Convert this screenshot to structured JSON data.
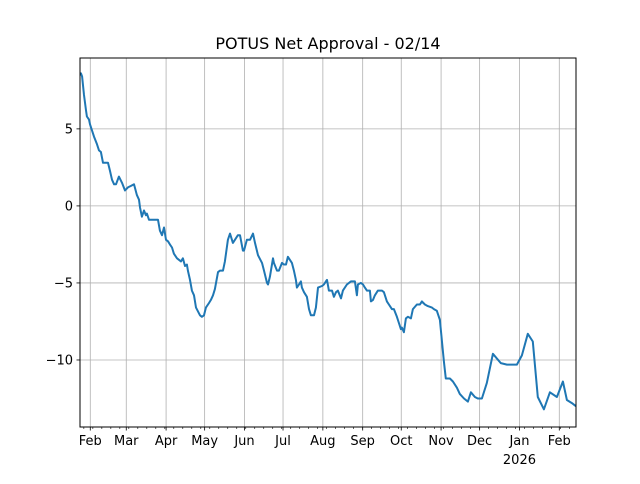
{
  "chart_data": {
    "type": "line",
    "title": "POTUS Net Approval - 02/14",
    "xlabel": "",
    "ylabel": "",
    "x_unit": "days since 2025-01-24",
    "xlim": [
      0,
      386
    ],
    "ylim": [
      -14.35,
      9.6
    ],
    "grid": true,
    "line_color": "#1f77b4",
    "yticks": [
      {
        "value": 5,
        "label": "5"
      },
      {
        "value": 0,
        "label": "0"
      },
      {
        "value": -5,
        "label": "−5"
      },
      {
        "value": -10,
        "label": "−10"
      }
    ],
    "xticks": [
      {
        "value": 8,
        "label": "Feb"
      },
      {
        "value": 36,
        "label": "Mar"
      },
      {
        "value": 67,
        "label": "Apr"
      },
      {
        "value": 97,
        "label": "May"
      },
      {
        "value": 128,
        "label": "Jun"
      },
      {
        "value": 158,
        "label": "Jul"
      },
      {
        "value": 189,
        "label": "Aug"
      },
      {
        "value": 220,
        "label": "Sep"
      },
      {
        "value": 250,
        "label": "Oct"
      },
      {
        "value": 281,
        "label": "Nov"
      },
      {
        "value": 311,
        "label": "Dec"
      },
      {
        "value": 342,
        "label": "Jan",
        "sublabel": "2026"
      },
      {
        "value": 373,
        "label": "Feb"
      }
    ],
    "series": [
      {
        "name": "Net Approval",
        "points": [
          [
            0,
            8.6
          ],
          [
            0.8,
            8.6
          ],
          [
            1.6,
            8.4
          ],
          [
            3.1,
            7.2
          ],
          [
            4.7,
            6.2
          ],
          [
            5.4,
            5.8
          ],
          [
            7.0,
            5.6
          ],
          [
            7.8,
            5.3
          ],
          [
            9.3,
            4.9
          ],
          [
            10.9,
            4.5
          ],
          [
            13.2,
            4.0
          ],
          [
            14.8,
            3.6
          ],
          [
            16.3,
            3.5
          ],
          [
            17.9,
            2.8
          ],
          [
            19.5,
            2.8
          ],
          [
            21.8,
            2.8
          ],
          [
            23.3,
            2.3
          ],
          [
            24.9,
            1.7
          ],
          [
            26.5,
            1.4
          ],
          [
            28.0,
            1.4
          ],
          [
            30.3,
            1.9
          ],
          [
            32.7,
            1.5
          ],
          [
            35.0,
            1.0
          ],
          [
            37.3,
            1.2
          ],
          [
            39.7,
            1.3
          ],
          [
            42.0,
            1.4
          ],
          [
            44.3,
            0.7
          ],
          [
            45.9,
            0.4
          ],
          [
            46.7,
            -0.1
          ],
          [
            48.2,
            -0.7
          ],
          [
            49.8,
            -0.3
          ],
          [
            51.3,
            -0.6
          ],
          [
            52.1,
            -0.5
          ],
          [
            53.7,
            -0.9
          ],
          [
            56.8,
            -0.9
          ],
          [
            60.7,
            -0.9
          ],
          [
            62.2,
            -1.6
          ],
          [
            63.8,
            -1.9
          ],
          [
            65.4,
            -1.4
          ],
          [
            66.9,
            -2.2
          ],
          [
            68.5,
            -2.3
          ],
          [
            70.0,
            -2.5
          ],
          [
            71.6,
            -2.7
          ],
          [
            73.1,
            -3.1
          ],
          [
            75.5,
            -3.4
          ],
          [
            78.6,
            -3.6
          ],
          [
            80.1,
            -3.4
          ],
          [
            81.7,
            -3.9
          ],
          [
            83.2,
            -3.8
          ],
          [
            84.0,
            -4.2
          ],
          [
            85.6,
            -4.8
          ],
          [
            87.1,
            -5.5
          ],
          [
            88.7,
            -5.8
          ],
          [
            90.3,
            -6.6
          ],
          [
            93.4,
            -7.1
          ],
          [
            94.9,
            -7.2
          ],
          [
            96.5,
            -7.1
          ],
          [
            98.0,
            -6.6
          ],
          [
            100.4,
            -6.3
          ],
          [
            101.9,
            -6.1
          ],
          [
            103.5,
            -5.8
          ],
          [
            105.0,
            -5.4
          ],
          [
            107.4,
            -4.3
          ],
          [
            108.9,
            -4.2
          ],
          [
            111.3,
            -4.2
          ],
          [
            112.8,
            -3.6
          ],
          [
            115.1,
            -2.2
          ],
          [
            116.7,
            -1.8
          ],
          [
            119.0,
            -2.4
          ],
          [
            122.9,
            -1.9
          ],
          [
            124.5,
            -1.9
          ],
          [
            126.8,
            -2.9
          ],
          [
            127.6,
            -2.9
          ],
          [
            129.9,
            -2.2
          ],
          [
            132.3,
            -2.2
          ],
          [
            134.6,
            -1.8
          ],
          [
            136.2,
            -2.4
          ],
          [
            138.5,
            -3.2
          ],
          [
            141.6,
            -3.7
          ],
          [
            143.2,
            -4.2
          ],
          [
            145.5,
            -5.0
          ],
          [
            146.3,
            -5.1
          ],
          [
            147.8,
            -4.6
          ],
          [
            150.2,
            -3.4
          ],
          [
            150.9,
            -3.7
          ],
          [
            153.3,
            -4.2
          ],
          [
            154.8,
            -4.2
          ],
          [
            157.2,
            -3.7
          ],
          [
            158.7,
            -3.8
          ],
          [
            160.3,
            -3.8
          ],
          [
            161.8,
            -3.3
          ],
          [
            164.9,
            -3.7
          ],
          [
            166.5,
            -4.2
          ],
          [
            168.0,
            -4.8
          ],
          [
            168.8,
            -5.3
          ],
          [
            170.4,
            -5.1
          ],
          [
            171.9,
            -4.9
          ],
          [
            172.7,
            -5.3
          ],
          [
            174.3,
            -5.6
          ],
          [
            176.6,
            -5.9
          ],
          [
            178.2,
            -6.7
          ],
          [
            179.7,
            -7.1
          ],
          [
            182.1,
            -7.1
          ],
          [
            183.6,
            -6.6
          ],
          [
            185.2,
            -5.3
          ],
          [
            188.3,
            -5.2
          ],
          [
            189.8,
            -5.1
          ],
          [
            191.4,
            -4.9
          ],
          [
            192.2,
            -4.8
          ],
          [
            193.7,
            -5.5
          ],
          [
            196.1,
            -5.5
          ],
          [
            197.6,
            -5.9
          ],
          [
            199.2,
            -5.6
          ],
          [
            200.7,
            -5.5
          ],
          [
            203.1,
            -6.0
          ],
          [
            204.6,
            -5.5
          ],
          [
            207.7,
            -5.1
          ],
          [
            210.8,
            -4.9
          ],
          [
            212.4,
            -4.9
          ],
          [
            213.9,
            -4.9
          ],
          [
            215.5,
            -5.8
          ],
          [
            216.3,
            -5.1
          ],
          [
            218.6,
            -5.0
          ],
          [
            220.2,
            -5.1
          ],
          [
            221.7,
            -5.3
          ],
          [
            223.3,
            -5.5
          ],
          [
            225.6,
            -5.5
          ],
          [
            226.4,
            -6.2
          ],
          [
            228.0,
            -6.1
          ],
          [
            229.5,
            -5.8
          ],
          [
            231.8,
            -5.5
          ],
          [
            235.0,
            -5.5
          ],
          [
            236.5,
            -5.6
          ],
          [
            238.8,
            -6.2
          ],
          [
            240.4,
            -6.4
          ],
          [
            242.7,
            -6.7
          ],
          [
            244.3,
            -6.7
          ],
          [
            246.6,
            -7.2
          ],
          [
            248.2,
            -7.6
          ],
          [
            249.7,
            -8.0
          ],
          [
            250.5,
            -7.9
          ],
          [
            252.1,
            -8.2
          ],
          [
            253.6,
            -7.3
          ],
          [
            255.2,
            -7.2
          ],
          [
            257.5,
            -7.3
          ],
          [
            259.1,
            -6.7
          ],
          [
            262.2,
            -6.4
          ],
          [
            264.5,
            -6.4
          ],
          [
            266.1,
            -6.2
          ],
          [
            268.4,
            -6.4
          ],
          [
            270.7,
            -6.5
          ],
          [
            273.9,
            -6.6
          ],
          [
            275.4,
            -6.7
          ],
          [
            277.7,
            -6.8
          ],
          [
            280.1,
            -7.4
          ],
          [
            281.6,
            -8.7
          ],
          [
            283.2,
            -10.1
          ],
          [
            284.7,
            -11.2
          ],
          [
            287.9,
            -11.2
          ],
          [
            290.2,
            -11.4
          ],
          [
            293.3,
            -11.8
          ],
          [
            295.6,
            -12.2
          ],
          [
            298.8,
            -12.5
          ],
          [
            301.9,
            -12.7
          ],
          [
            304.2,
            -12.1
          ],
          [
            307.3,
            -12.4
          ],
          [
            309.6,
            -12.5
          ],
          [
            312.8,
            -12.5
          ],
          [
            316.6,
            -11.5
          ],
          [
            321.3,
            -9.6
          ],
          [
            327.5,
            -10.2
          ],
          [
            332.2,
            -10.3
          ],
          [
            340.0,
            -10.3
          ],
          [
            343.9,
            -9.7
          ],
          [
            348.5,
            -8.3
          ],
          [
            352.4,
            -8.8
          ],
          [
            356.3,
            -12.4
          ],
          [
            361.0,
            -13.2
          ],
          [
            365.7,
            -12.1
          ],
          [
            371.1,
            -12.4
          ],
          [
            375.8,
            -11.4
          ],
          [
            378.9,
            -12.6
          ],
          [
            382.8,
            -12.8
          ],
          [
            385.9,
            -13.0
          ]
        ]
      }
    ]
  }
}
